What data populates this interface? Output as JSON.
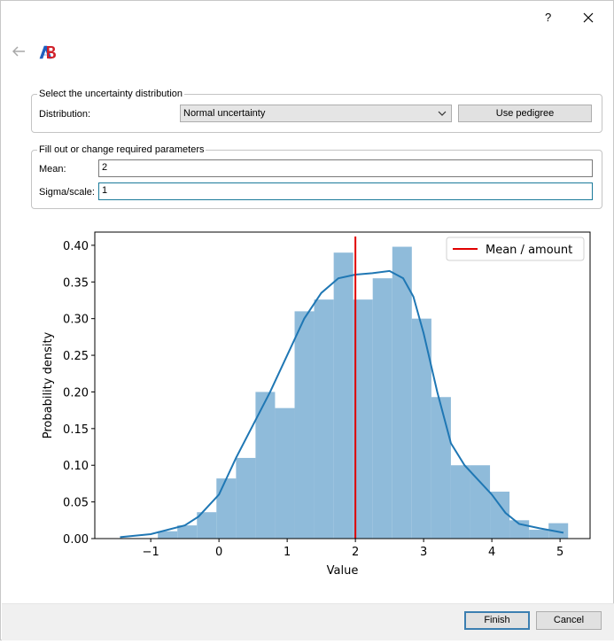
{
  "window": {
    "help": "?"
  },
  "distribution_group": {
    "title": "Select the uncertainty distribution",
    "label": "Distribution:",
    "selected": "Normal uncertainty",
    "button": "Use pedigree"
  },
  "parameters_group": {
    "title": "Fill out or change required parameters",
    "fields": [
      {
        "label": "Mean:",
        "value": "2"
      },
      {
        "label": "Sigma/scale:",
        "value": "1"
      }
    ]
  },
  "chart_data": {
    "type": "histogram",
    "xlabel": "Value",
    "ylabel": "Probability density",
    "bins": [
      -0.896,
      -0.61,
      -0.323,
      -0.037,
      0.25,
      0.536,
      0.822,
      1.109,
      1.395,
      1.682,
      1.968,
      2.254,
      2.541,
      2.827,
      3.114,
      3.4,
      3.686,
      3.973,
      4.259,
      4.546,
      4.832,
      5.118
    ],
    "values": [
      0.01,
      0.018,
      0.036,
      0.082,
      0.11,
      0.2,
      0.178,
      0.31,
      0.326,
      0.39,
      0.326,
      0.355,
      0.398,
      0.3,
      0.193,
      0.1,
      0.1,
      0.064,
      0.025,
      0.012,
      0.021
    ],
    "color": "#8fbbda",
    "kde": {
      "color": "#1f77b4",
      "x": [
        -1.45,
        -1.0,
        -0.5,
        -0.3,
        0.0,
        0.25,
        0.5,
        0.75,
        1.0,
        1.25,
        1.5,
        1.75,
        2.0,
        2.25,
        2.5,
        2.7,
        2.85,
        3.0,
        3.2,
        3.4,
        3.6,
        3.8,
        4.0,
        4.2,
        4.4,
        4.7,
        5.05
      ],
      "y": [
        0.002,
        0.006,
        0.018,
        0.03,
        0.06,
        0.11,
        0.155,
        0.2,
        0.25,
        0.3,
        0.335,
        0.355,
        0.36,
        0.362,
        0.365,
        0.355,
        0.33,
        0.28,
        0.2,
        0.13,
        0.1,
        0.08,
        0.06,
        0.035,
        0.02,
        0.014,
        0.008
      ]
    },
    "vline": {
      "name": "Mean / amount",
      "x": 2,
      "color": "#e00000"
    },
    "legend": "upper right",
    "xlim": [
      -1.82,
      5.44
    ],
    "xticks": [
      {
        "value": -1,
        "label": "−1"
      },
      0,
      1,
      2,
      3,
      4,
      5
    ],
    "ylim": [
      0,
      0.418
    ],
    "yticks": [
      {
        "value": 0,
        "label": "0.00"
      },
      {
        "value": 0.05,
        "label": "0.05"
      },
      {
        "value": 0.1,
        "label": "0.10"
      },
      {
        "value": 0.15,
        "label": "0.15"
      },
      {
        "value": 0.2,
        "label": "0.20"
      },
      {
        "value": 0.25,
        "label": "0.25"
      },
      {
        "value": 0.3,
        "label": "0.30"
      },
      {
        "value": 0.35,
        "label": "0.35"
      },
      {
        "value": 0.4,
        "label": "0.40"
      }
    ]
  },
  "buttons": [
    "Finish",
    "Cancel"
  ]
}
